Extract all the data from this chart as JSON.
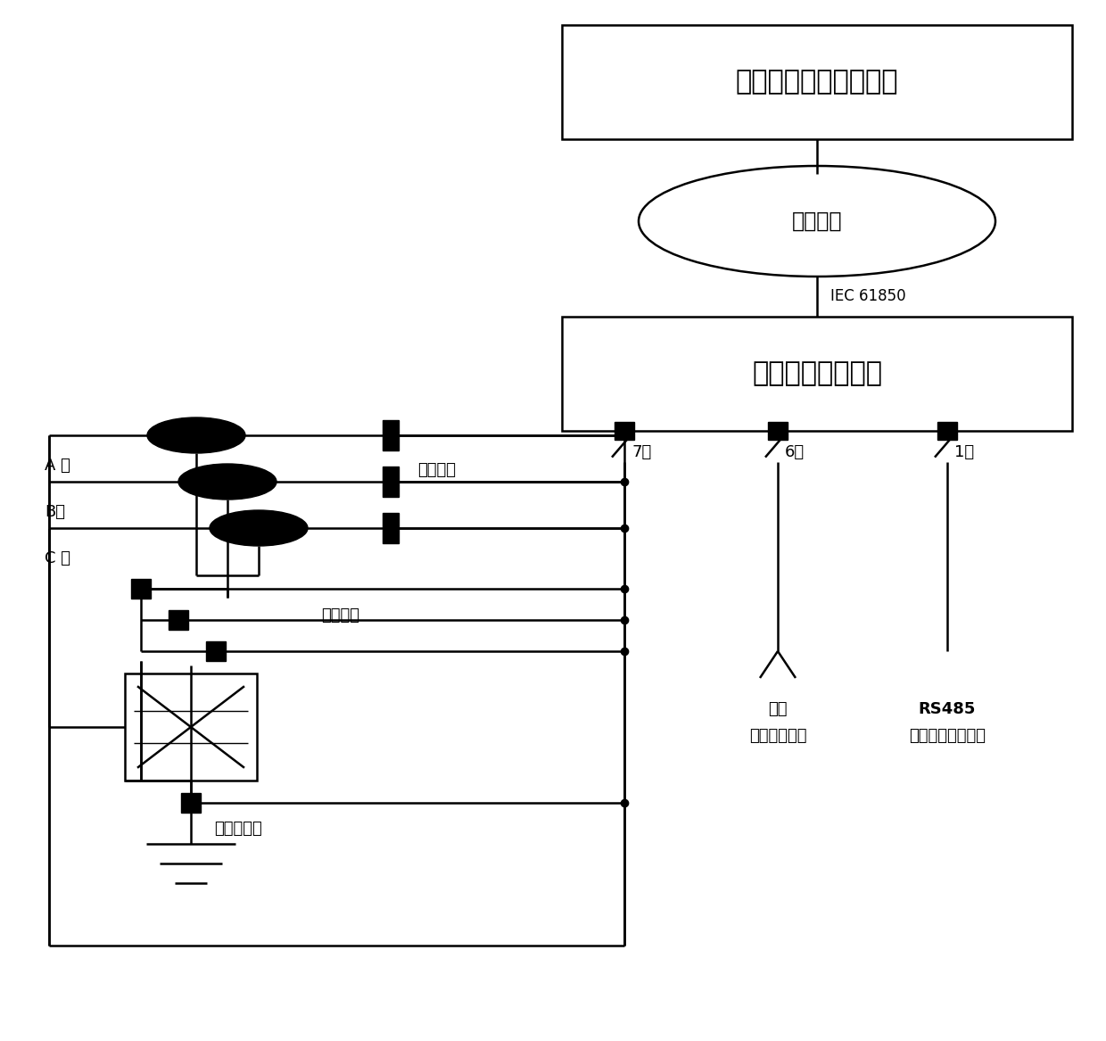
{
  "bg": "#ffffff",
  "K": "#000000",
  "box1_text": "在线监测站端监控平台",
  "box2_text": "电缆本体监测单元",
  "ell_text": "光纤环网",
  "iec_text": "IEC 61850",
  "phase_A": "A 相",
  "phase_B": "B相",
  "phase_C": "C 相",
  "run_cur": "运行电流",
  "sheath_cur": "护层电流",
  "gnd_cur": "总接地电流",
  "ch7": "7路",
  "ch6": "6路",
  "ch1": "1路",
  "kairu": "开入",
  "dxjc": "（断线监测）",
  "rs485": "RS485",
  "djjt": "（电缆接头温度）",
  "figw": 12.4,
  "figh": 11.67,
  "dpi": 100
}
